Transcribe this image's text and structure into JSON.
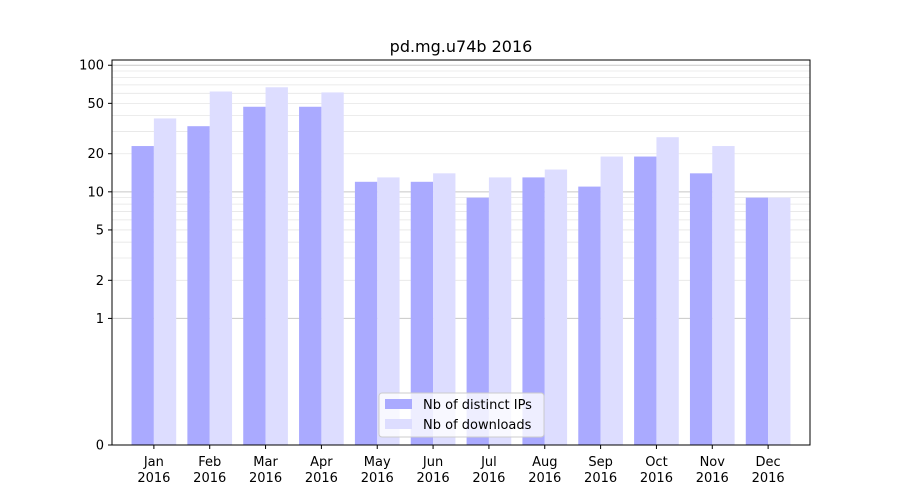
{
  "chart_data": {
    "type": "bar",
    "title": "pd.mg.u74b 2016",
    "xlabel": "",
    "ylabel": "",
    "y_scale": "symlog",
    "ylim": [
      0,
      110
    ],
    "yticks": [
      0,
      1,
      2,
      5,
      10,
      20,
      50,
      100
    ],
    "categories": [
      [
        "Jan",
        "2016"
      ],
      [
        "Feb",
        "2016"
      ],
      [
        "Mar",
        "2016"
      ],
      [
        "Apr",
        "2016"
      ],
      [
        "May",
        "2016"
      ],
      [
        "Jun",
        "2016"
      ],
      [
        "Jul",
        "2016"
      ],
      [
        "Aug",
        "2016"
      ],
      [
        "Sep",
        "2016"
      ],
      [
        "Oct",
        "2016"
      ],
      [
        "Nov",
        "2016"
      ],
      [
        "Dec",
        "2016"
      ]
    ],
    "series": [
      {
        "name": "Nb of distinct IPs",
        "color": "#aaaaff",
        "values": [
          23,
          33,
          47,
          47,
          12,
          12,
          9,
          13,
          11,
          19,
          14,
          9
        ]
      },
      {
        "name": "Nb of downloads",
        "color": "#ddddff",
        "values": [
          38,
          62,
          67,
          61,
          13,
          14,
          13,
          15,
          19,
          27,
          23,
          9
        ]
      }
    ],
    "grid": true,
    "legend_position": "bottom-center"
  }
}
